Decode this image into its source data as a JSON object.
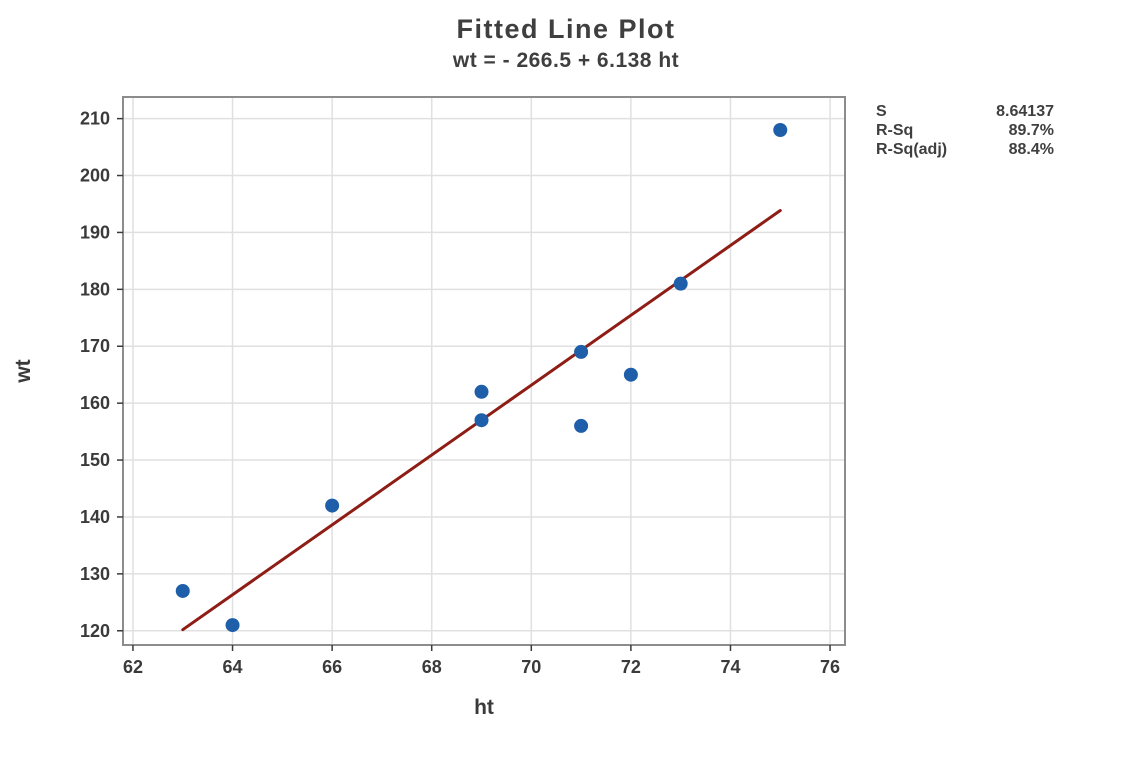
{
  "chart_data": {
    "type": "scatter",
    "title": "Fitted Line Plot",
    "subtitle": "wt = - 266.5 + 6.138 ht",
    "xlabel": "ht",
    "ylabel": "wt",
    "xlim": [
      61.8,
      76.3
    ],
    "ylim": [
      117.5,
      213.8
    ],
    "xticks": [
      62,
      64,
      66,
      68,
      70,
      72,
      74,
      76
    ],
    "yticks": [
      120,
      130,
      140,
      150,
      160,
      170,
      180,
      190,
      200,
      210
    ],
    "grid": true,
    "legend_position": "right",
    "points": [
      [
        63,
        127
      ],
      [
        64,
        121
      ],
      [
        66,
        142
      ],
      [
        69,
        157
      ],
      [
        69,
        162
      ],
      [
        71,
        156
      ],
      [
        71,
        169
      ],
      [
        72,
        165
      ],
      [
        73,
        181
      ],
      [
        75,
        208
      ]
    ],
    "fit": {
      "equation": "wt = - 266.5 + 6.138 ht",
      "intercept": -266.5,
      "slope": 6.138,
      "x_start": 63,
      "x_end": 75
    },
    "stats": [
      {
        "label": "S",
        "value": "8.64137"
      },
      {
        "label": "R-Sq",
        "value": "89.7%"
      },
      {
        "label": "R-Sq(adj)",
        "value": "88.4%"
      }
    ],
    "colors": {
      "point": "#1f5fa9",
      "fit_line": "#8e1d15",
      "grid": "#e0e0e0",
      "frame": "#8c8c8c",
      "text": "#3a3a3a",
      "title_text": "#3f3f3f"
    }
  }
}
